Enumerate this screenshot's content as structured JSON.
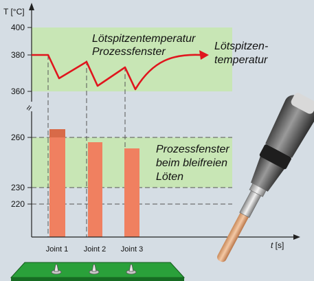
{
  "axis": {
    "y_label": "T [°C]",
    "x_label_var": "t",
    "x_label_unit": " [s]",
    "break_symbol": "≈",
    "ticks": [
      {
        "label": "400",
        "value": 400
      },
      {
        "label": "380",
        "value": 380
      },
      {
        "label": "360",
        "value": 360
      },
      {
        "label": "260",
        "value": 260
      },
      {
        "label": "230",
        "value": 230
      },
      {
        "label": "220",
        "value": 220
      }
    ]
  },
  "upper_window": {
    "line1": "Lötspitzentemperatur",
    "line2": "Prozessfenster",
    "range": [
      360,
      400
    ]
  },
  "tip_label": {
    "line1": "Lötspitzen-",
    "line2": "temperatur"
  },
  "lower_window": {
    "line1": "Prozessfenster",
    "line2": "beim bleifreien",
    "line3": "Löten",
    "range": [
      230,
      260
    ]
  },
  "joints": [
    {
      "label": "Joint 1",
      "peak_temp": 264
    },
    {
      "label": "Joint 2",
      "peak_temp": 257
    },
    {
      "label": "Joint 3",
      "peak_temp": 254
    }
  ],
  "colors": {
    "background": "#d5dde4",
    "window_fill": "#c8e6b5",
    "curve": "#e0151d",
    "bar": "#f08060",
    "bar_shade": "#d86a48",
    "pcb": "#1f8a2e"
  }
}
